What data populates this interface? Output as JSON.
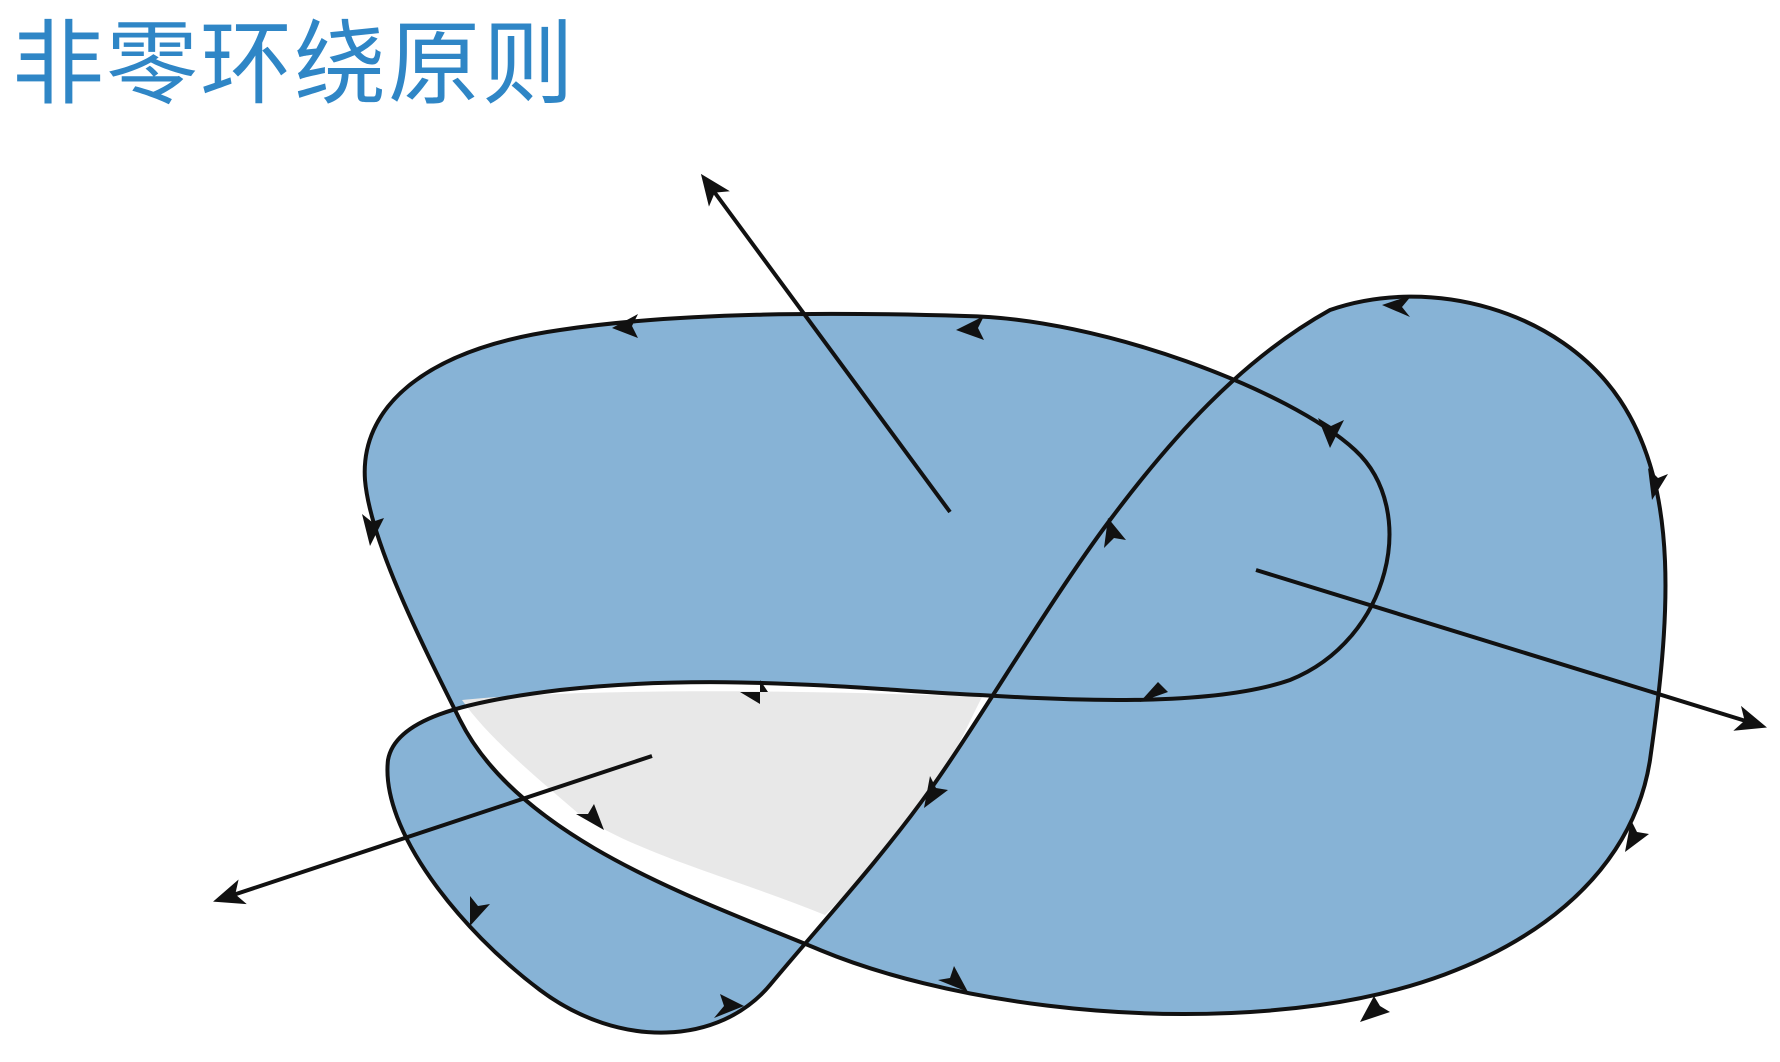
{
  "title": "非零环绕原则",
  "colors": {
    "title": "#2f86c6",
    "fill_nonzero": "#87b3d6",
    "fill_zero": "#e8e8e8",
    "stroke": "#111111"
  },
  "icons": {
    "direction_marker": "arrowhead"
  }
}
